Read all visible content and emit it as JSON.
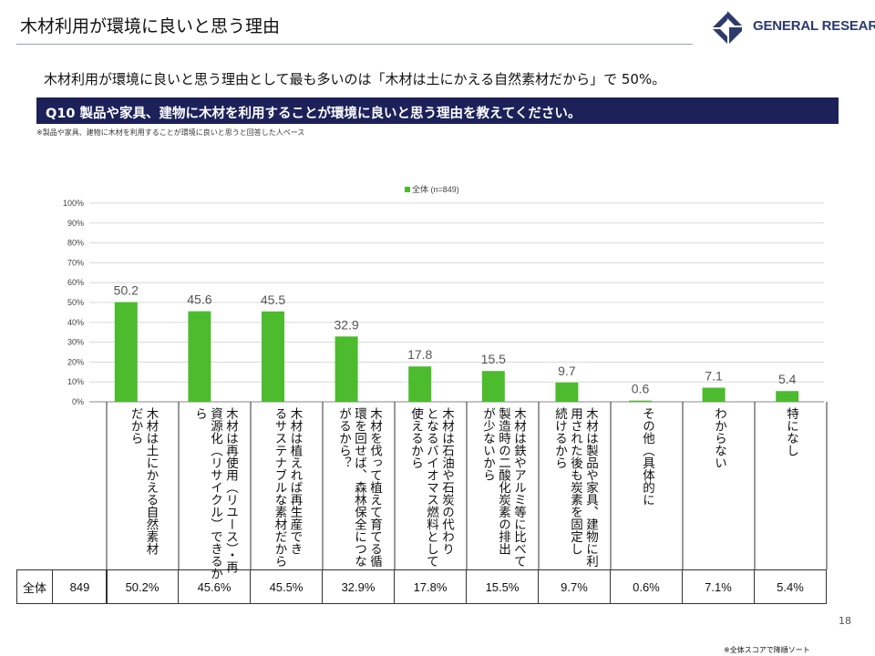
{
  "header": {
    "title": "木材利用が環境に良いと思う理由",
    "brand": "GENERAL RESEARCH"
  },
  "summary": "木材利用が環境に良いと思う理由として最も多いのは「木材は土にかえる自然素材だから」で 50%。",
  "question": "Q10 製品や家具、建物に木材を利用することが環境に良いと思う理由を教えてください。",
  "base_note": "※製品や家具、建物に木材を利用することが環境に良いと思うと回答した人ベース",
  "chart_data": {
    "type": "bar",
    "ylim": [
      0,
      100
    ],
    "yticks": [
      "0%",
      "10%",
      "20%",
      "30%",
      "40%",
      "50%",
      "60%",
      "70%",
      "80%",
      "90%",
      "100%"
    ],
    "grid": true,
    "legend_position": "top",
    "series": [
      {
        "name": "全体 (n=849)",
        "values": [
          50.2,
          45.6,
          45.5,
          32.9,
          17.8,
          15.5,
          9.7,
          0.6,
          7.1,
          5.4
        ]
      }
    ],
    "value_labels": [
      "50.2",
      "45.6",
      "45.5",
      "32.9",
      "17.8",
      "15.5",
      "9.7",
      "0.6",
      "7.1",
      "5.4"
    ],
    "categories": [
      "木材は土にかえる自然素材だから",
      "木材は再使用（リユース）・再資源化（リサイクル）できるから",
      "木材は植えれば再生産できるサステナブルな素材だから",
      "木材を伐って植えて育てる循環を回せば、森林保全につながるから？",
      "木材は石油や石炭の代わりとなるバイオマス燃料として使えるから",
      "木材は鉄やアルミ等に比べて製造時の二酸化炭素の排出が少ないから",
      "木材は製品や家具、建物に利用された後も炭素を固定し続けるから",
      "その他（具体的に",
      "わからない",
      "特になし"
    ],
    "category_label_lines": [
      "木材は土にかえる自然素材\nだから",
      "木材は再使用（リユース）・再\n資源化（リサイクル）できるか\nら",
      "木材は植えれば再生産でき\nるサステナブルな素材だから",
      "木材を伐って植えて育てる循\n環を回せば、森林保全につな\nがるから？",
      "木材は石油や石炭の代わり\nとなるバイオマス燃料として\n使えるから",
      "木材は鉄やアルミ等に比べて\n製造時の二酸化炭素の排出\nが少ないから",
      "木材は製品や家具、建物に利\n用された後も炭素を固定し\n続けるから",
      "その他（具体的に",
      "わからない",
      "特になし"
    ],
    "bar_color": "#4cbb2e"
  },
  "table": {
    "row_label": "全体",
    "n": "849",
    "cells": [
      "50.2%",
      "45.6%",
      "45.5%",
      "32.9%",
      "17.8%",
      "15.5%",
      "9.7%",
      "0.6%",
      "7.1%",
      "5.4%"
    ]
  },
  "page_number": "18",
  "footer_note": "※全体スコアで降順ソート"
}
